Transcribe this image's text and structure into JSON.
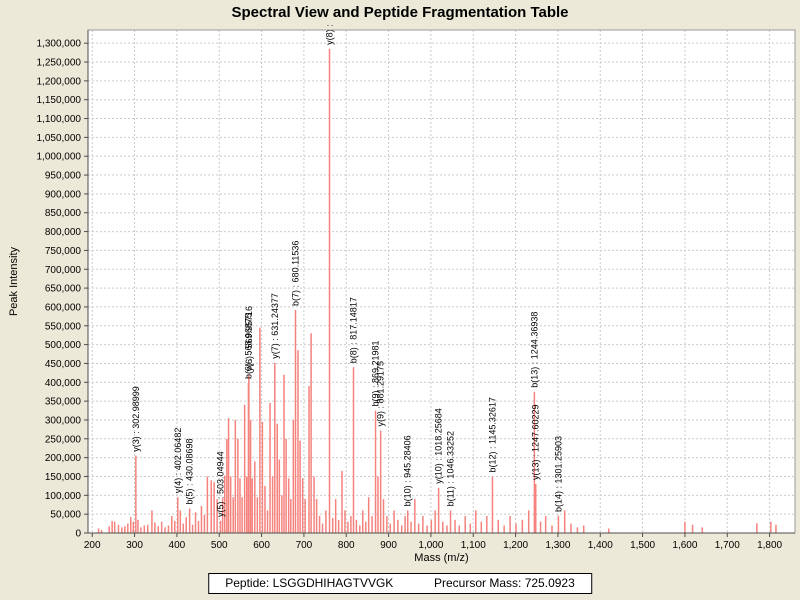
{
  "title": "Spectral View and Peptide Fragmentation Table",
  "footer": {
    "peptide_label": "Peptide:",
    "peptide_value": "LSGGDHIHAGTVVGK",
    "precursor_label": "Precursor Mass:",
    "precursor_value": "725.0923"
  },
  "chart_data": {
    "type": "bar",
    "title": "Spectral View and Peptide Fragmentation Table",
    "xlabel": "Mass (m/z)",
    "ylabel": "Peak Intensity",
    "xlim": [
      190,
      1860
    ],
    "ylim": [
      0,
      1335000
    ],
    "x_tick_min": 200,
    "x_tick_max": 1800,
    "x_tick_step": 100,
    "y_tick_max": 1300000,
    "y_tick_step": 50000,
    "grid": true,
    "legend": "none",
    "bar_color": "#f5827d",
    "grid_color": "#cbcbcb",
    "plot_bg": "#ffffff",
    "window_bg": "#ece9d8",
    "axis_color": "#4d4d4d",
    "labeled_peaks": [
      {
        "label": "y(3) : 302.98999",
        "mz": 302.98999,
        "intensity": 205000
      },
      {
        "label": "y(4) : 402.06482",
        "mz": 402.06482,
        "intensity": 95000
      },
      {
        "label": "b(5) : 430.08698",
        "mz": 430.08698,
        "intensity": 65000
      },
      {
        "label": "y(5) : 503.04944",
        "mz": 503.04944,
        "intensity": 32000
      },
      {
        "label": "b(6) : 568.96875",
        "mz": 568.96875,
        "intensity": 398000
      },
      {
        "label": "y(6) : 569.95716",
        "mz": 569.95716,
        "intensity": 418000
      },
      {
        "label": "y(7) : 631.24377",
        "mz": 631.24377,
        "intensity": 452000
      },
      {
        "label": "b(7) : 680.11536",
        "mz": 680.11536,
        "intensity": 592000
      },
      {
        "label": "y(8) :",
        "mz": 760.5,
        "intensity": 1285000
      },
      {
        "label": "b(8) : 817.14817",
        "mz": 817.14817,
        "intensity": 440000
      },
      {
        "label": "b(9) : 869.21981",
        "mz": 869.21981,
        "intensity": 325000
      },
      {
        "label": "y(9) : 881.29175",
        "mz": 881.29175,
        "intensity": 272000
      },
      {
        "label": "b(10) : 945.28406",
        "mz": 945.28406,
        "intensity": 60000
      },
      {
        "label": "y(10) : 1018.25684",
        "mz": 1018.25684,
        "intensity": 120000
      },
      {
        "label": "b(11) : 1046.33252",
        "mz": 1046.33252,
        "intensity": 60000
      },
      {
        "label": "b(12) : 1145.32617",
        "mz": 1145.32617,
        "intensity": 150000
      },
      {
        "label": "b(13) : 1244.36938",
        "mz": 1244.36938,
        "intensity": 375000
      },
      {
        "label": "y(13) : 1247.60229",
        "mz": 1247.60229,
        "intensity": 130000
      },
      {
        "label": "b(14) : 1301.25903",
        "mz": 1301.25903,
        "intensity": 45000
      }
    ],
    "noise_peaks": [
      [
        215,
        12000
      ],
      [
        222,
        8000
      ],
      [
        240,
        18000
      ],
      [
        247,
        32000
      ],
      [
        253,
        30000
      ],
      [
        262,
        22000
      ],
      [
        270,
        15000
      ],
      [
        277,
        18000
      ],
      [
        284,
        25000
      ],
      [
        291,
        42000
      ],
      [
        297,
        30000
      ],
      [
        308,
        35000
      ],
      [
        315,
        15000
      ],
      [
        323,
        20000
      ],
      [
        331,
        22000
      ],
      [
        341,
        60000
      ],
      [
        348,
        28000
      ],
      [
        356,
        18000
      ],
      [
        364,
        30000
      ],
      [
        372,
        15000
      ],
      [
        380,
        20000
      ],
      [
        388,
        45000
      ],
      [
        395,
        32000
      ],
      [
        408,
        60000
      ],
      [
        415,
        25000
      ],
      [
        422,
        42000
      ],
      [
        437,
        22000
      ],
      [
        444,
        55000
      ],
      [
        451,
        32000
      ],
      [
        458,
        72000
      ],
      [
        465,
        48000
      ],
      [
        472,
        150000
      ],
      [
        481,
        140000
      ],
      [
        488,
        135000
      ],
      [
        495,
        90000
      ],
      [
        508,
        92000
      ],
      [
        513,
        152000
      ],
      [
        518,
        250000
      ],
      [
        522,
        305000
      ],
      [
        527,
        150000
      ],
      [
        533,
        95000
      ],
      [
        538,
        300000
      ],
      [
        544,
        250000
      ],
      [
        549,
        145000
      ],
      [
        554,
        95000
      ],
      [
        560,
        340000
      ],
      [
        565,
        150000
      ],
      [
        574,
        300000
      ],
      [
        578,
        145000
      ],
      [
        584,
        190000
      ],
      [
        590,
        95000
      ],
      [
        596,
        545000
      ],
      [
        602,
        295000
      ],
      [
        608,
        125000
      ],
      [
        614,
        60000
      ],
      [
        620,
        345000
      ],
      [
        626,
        150000
      ],
      [
        637,
        290000
      ],
      [
        642,
        195000
      ],
      [
        648,
        100000
      ],
      [
        653,
        420000
      ],
      [
        658,
        250000
      ],
      [
        664,
        145000
      ],
      [
        669,
        90000
      ],
      [
        675,
        300000
      ],
      [
        686,
        485000
      ],
      [
        691,
        245000
      ],
      [
        697,
        145000
      ],
      [
        703,
        90000
      ],
      [
        712,
        390000
      ],
      [
        717,
        530000
      ],
      [
        724,
        150000
      ],
      [
        730,
        90000
      ],
      [
        737,
        45000
      ],
      [
        744,
        25000
      ],
      [
        752,
        60000
      ],
      [
        768,
        40000
      ],
      [
        775,
        90000
      ],
      [
        782,
        35000
      ],
      [
        790,
        165000
      ],
      [
        797,
        60000
      ],
      [
        804,
        30000
      ],
      [
        811,
        45000
      ],
      [
        824,
        35000
      ],
      [
        832,
        20000
      ],
      [
        839,
        60000
      ],
      [
        846,
        30000
      ],
      [
        853,
        95000
      ],
      [
        861,
        45000
      ],
      [
        875,
        150000
      ],
      [
        888,
        90000
      ],
      [
        896,
        45000
      ],
      [
        904,
        25000
      ],
      [
        913,
        60000
      ],
      [
        922,
        35000
      ],
      [
        931,
        20000
      ],
      [
        939,
        45000
      ],
      [
        953,
        30000
      ],
      [
        962,
        90000
      ],
      [
        971,
        25000
      ],
      [
        981,
        45000
      ],
      [
        991,
        20000
      ],
      [
        1001,
        35000
      ],
      [
        1010,
        60000
      ],
      [
        1028,
        30000
      ],
      [
        1038,
        20000
      ],
      [
        1057,
        35000
      ],
      [
        1067,
        20000
      ],
      [
        1081,
        45000
      ],
      [
        1093,
        25000
      ],
      [
        1106,
        60000
      ],
      [
        1119,
        30000
      ],
      [
        1132,
        45000
      ],
      [
        1159,
        35000
      ],
      [
        1173,
        20000
      ],
      [
        1187,
        45000
      ],
      [
        1201,
        25000
      ],
      [
        1216,
        35000
      ],
      [
        1231,
        60000
      ],
      [
        1259,
        30000
      ],
      [
        1271,
        45000
      ],
      [
        1286,
        20000
      ],
      [
        1316,
        60000
      ],
      [
        1331,
        25000
      ],
      [
        1346,
        15000
      ],
      [
        1361,
        20000
      ],
      [
        1420,
        12000
      ],
      [
        1600,
        30000
      ],
      [
        1618,
        22000
      ],
      [
        1641,
        15000
      ],
      [
        1770,
        26000
      ],
      [
        1803,
        30000
      ],
      [
        1815,
        22000
      ]
    ]
  }
}
